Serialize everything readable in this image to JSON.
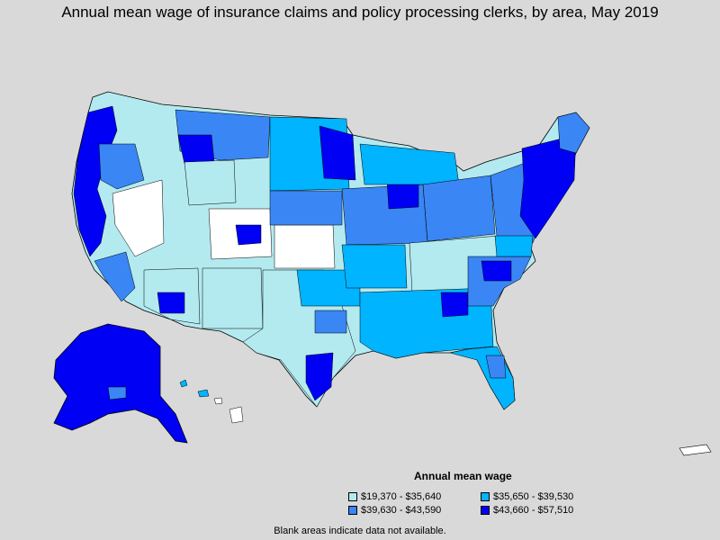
{
  "title": "Annual mean wage of insurance claims and policy processing clerks, by area, May 2019",
  "legend": {
    "title": "Annual mean wage",
    "items": [
      {
        "label": "$19,370 - $35,640",
        "color": "#b3eaf0"
      },
      {
        "label": "$35,650 - $39,530",
        "color": "#00b4ff"
      },
      {
        "label": "$39,630 - $43,590",
        "color": "#3a86f5"
      },
      {
        "label": "$43,660 - $57,510",
        "color": "#0000f5"
      }
    ]
  },
  "footnote": "Blank areas indicate data not available.",
  "colors": {
    "background": "#d9d9d9",
    "no_data": "#ffffff",
    "border": "#000000"
  }
}
